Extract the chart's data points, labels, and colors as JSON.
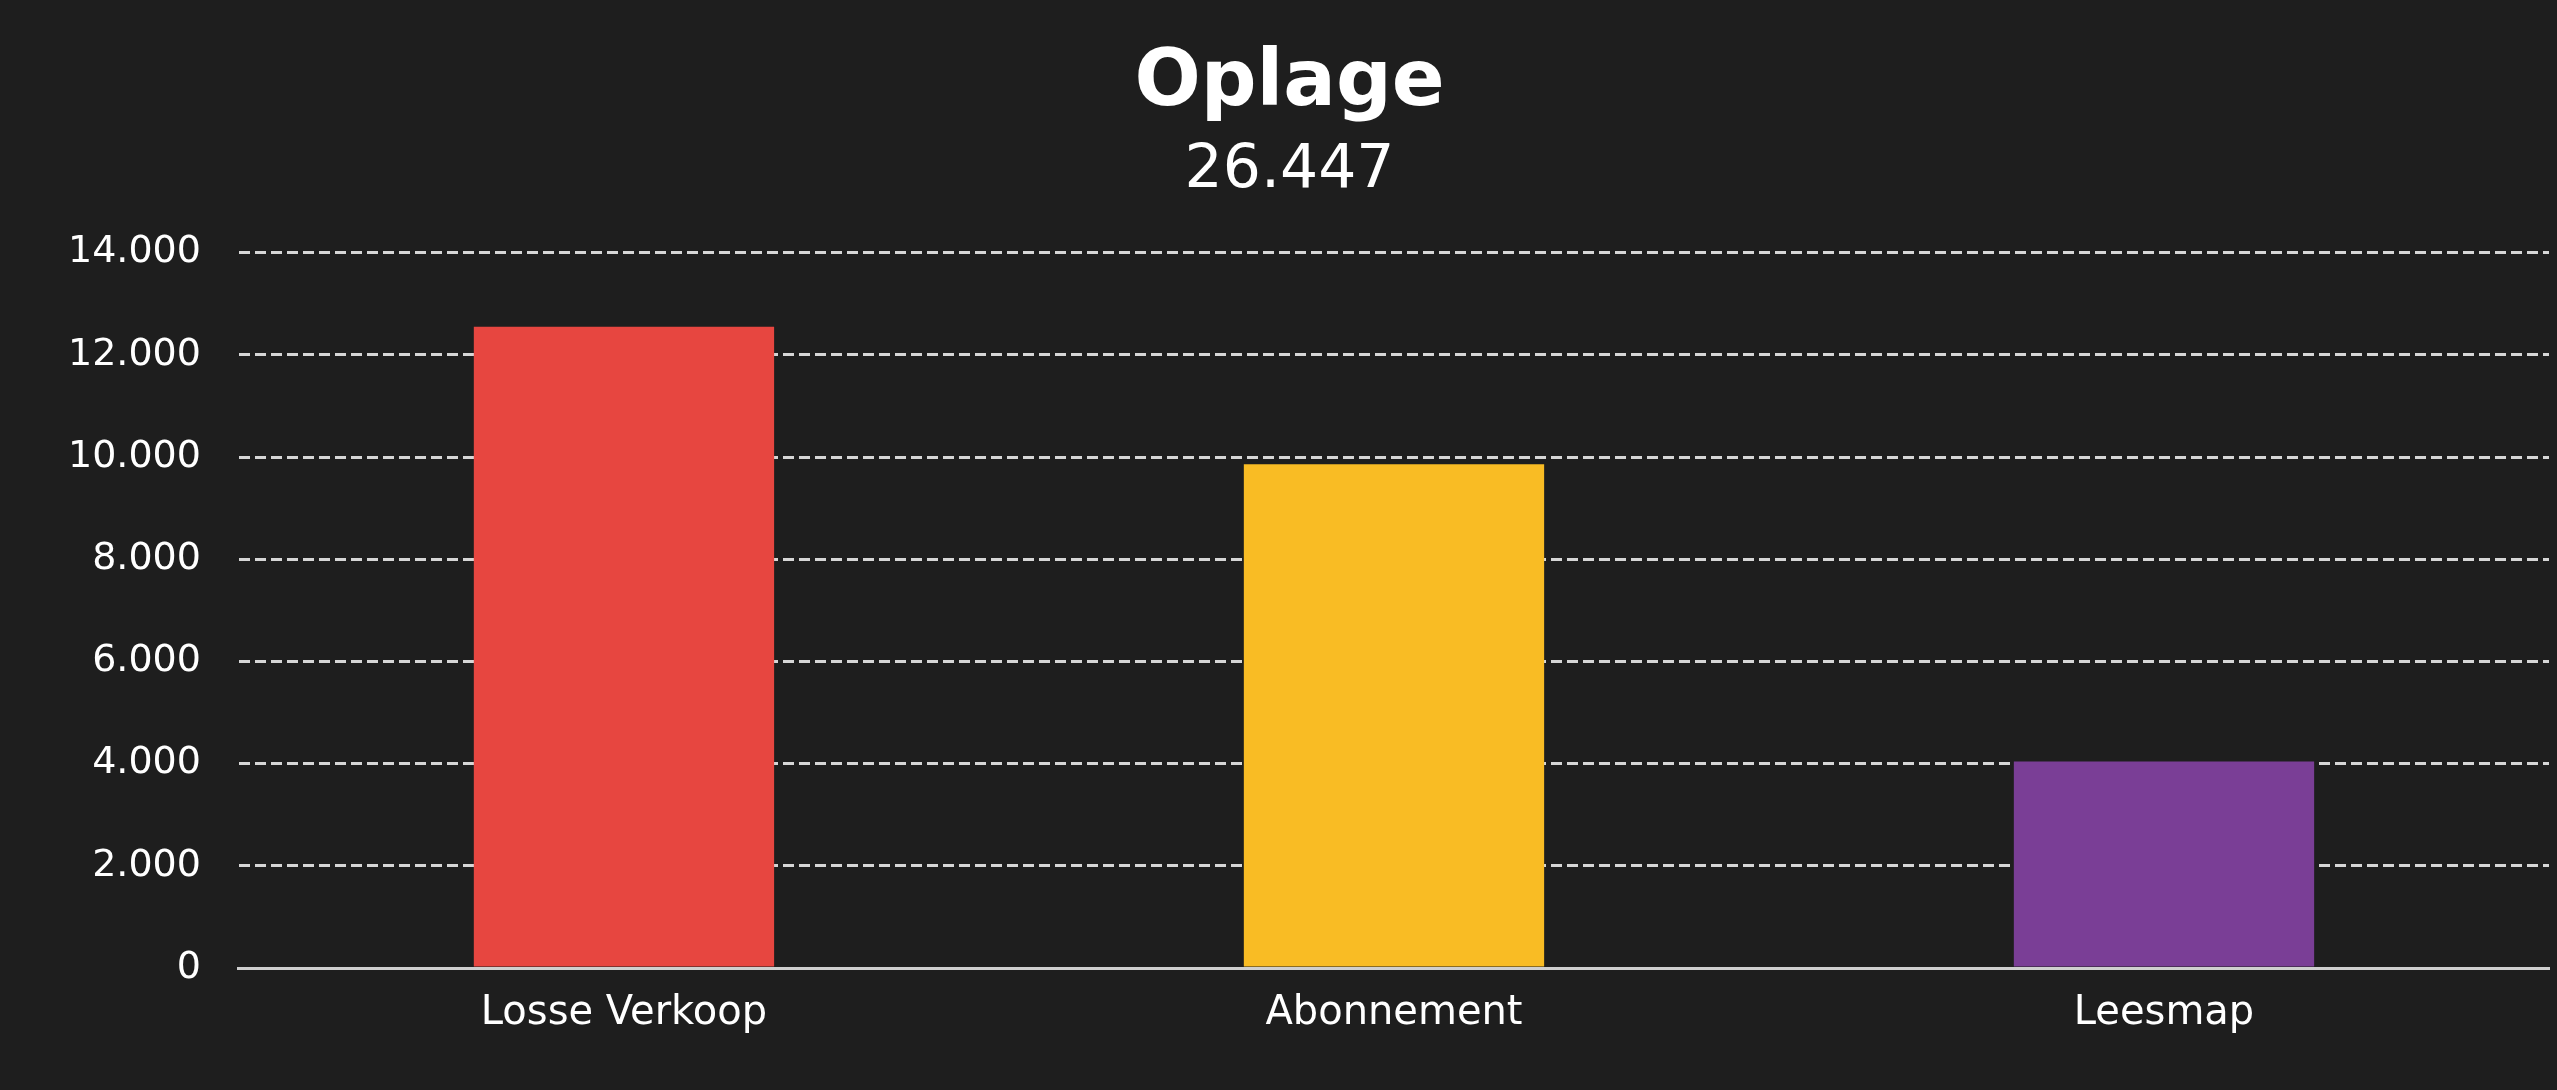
{
  "chart_data": {
    "type": "bar",
    "title": "Oplage",
    "subtitle": "26.447",
    "categories": [
      "Losse Verkoop",
      "Abonnement",
      "Leesmap"
    ],
    "values": [
      12550,
      9860,
      4040
    ],
    "colors": [
      "#e74640",
      "#f9bc24",
      "#7a3e96"
    ],
    "ylim": [
      0,
      14000
    ],
    "yticks": [
      0,
      {
        "value": 2000,
        "label": "2.000"
      },
      {
        "value": 4000,
        "label": "4.000"
      },
      {
        "value": 6000,
        "label": "6.000"
      },
      {
        "value": 8000,
        "label": "8.000"
      },
      {
        "value": 10000,
        "label": "10.000"
      },
      {
        "value": 12000,
        "label": "12.000"
      },
      {
        "value": 14000,
        "label": "14.000"
      }
    ],
    "grid": "y"
  }
}
